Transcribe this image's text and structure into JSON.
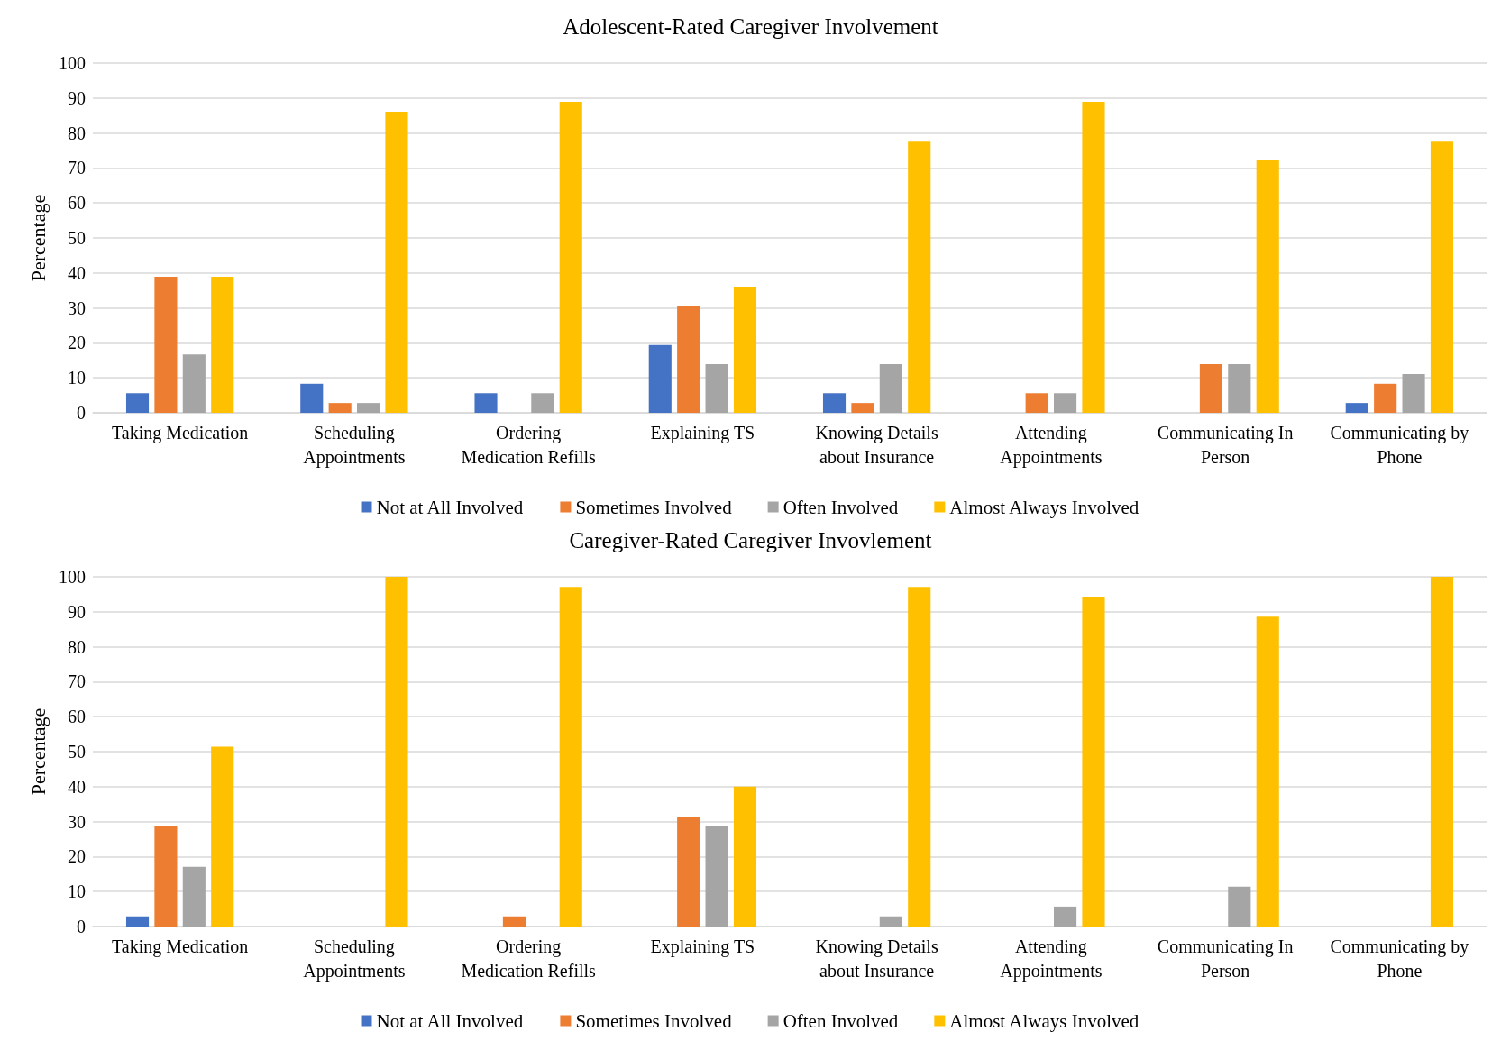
{
  "chart_data": [
    {
      "type": "bar",
      "title": "Adolescent-Rated Caregiver Involvement",
      "ylabel": "Percentage",
      "categories": [
        "Taking Medication",
        "Scheduling Appointments",
        "Ordering Medication Refills",
        "Explaining TS",
        "Knowing Details about Insurance",
        "Attending Appointments",
        "Communicating In Person",
        "Communicating by Phone"
      ],
      "series": [
        {
          "name": "Not at All Involved",
          "color": "#4472c4",
          "values": [
            5.6,
            8.3,
            5.6,
            19.4,
            5.6,
            0,
            0,
            2.8
          ]
        },
        {
          "name": "Sometimes Involved",
          "color": "#ed7d31",
          "values": [
            38.9,
            2.8,
            0,
            30.6,
            2.8,
            5.6,
            13.9,
            8.3
          ]
        },
        {
          "name": "Often Involved",
          "color": "#a5a5a5",
          "values": [
            16.7,
            2.8,
            5.6,
            13.9,
            13.9,
            5.6,
            13.9,
            11.1
          ]
        },
        {
          "name": "Almost Always Involved",
          "color": "#ffc000",
          "values": [
            38.9,
            86.1,
            88.9,
            36.1,
            77.8,
            88.9,
            72.2,
            77.8
          ]
        }
      ],
      "ylim": [
        0,
        100
      ],
      "yticks": [
        0,
        10,
        20,
        30,
        40,
        50,
        60,
        70,
        80,
        90,
        100
      ],
      "grid": "y",
      "legend": "bottom"
    },
    {
      "type": "bar",
      "title": "Caregiver-Rated Caregiver Invovlement",
      "ylabel": "Percentage",
      "categories": [
        "Taking Medication",
        "Scheduling Appointments",
        "Ordering Medication Refills",
        "Explaining TS",
        "Knowing Details about Insurance",
        "Attending Appointments",
        "Communicating In Person",
        "Communicating by Phone"
      ],
      "series": [
        {
          "name": "Not at All Involved",
          "color": "#4472c4",
          "values": [
            2.9,
            0,
            0,
            0,
            0,
            0,
            0,
            0
          ]
        },
        {
          "name": "Sometimes Involved",
          "color": "#ed7d31",
          "values": [
            28.6,
            0,
            2.9,
            31.4,
            0,
            0,
            0,
            0
          ]
        },
        {
          "name": "Often Involved",
          "color": "#a5a5a5",
          "values": [
            17.1,
            0,
            0,
            28.6,
            2.9,
            5.7,
            11.4,
            0
          ]
        },
        {
          "name": "Almost Always Involved",
          "color": "#ffc000",
          "values": [
            51.4,
            100,
            97.1,
            40.0,
            97.1,
            94.3,
            88.6,
            100
          ]
        }
      ],
      "ylim": [
        0,
        100
      ],
      "yticks": [
        0,
        10,
        20,
        30,
        40,
        50,
        60,
        70,
        80,
        90,
        100
      ],
      "grid": "y",
      "legend": "bottom"
    }
  ]
}
